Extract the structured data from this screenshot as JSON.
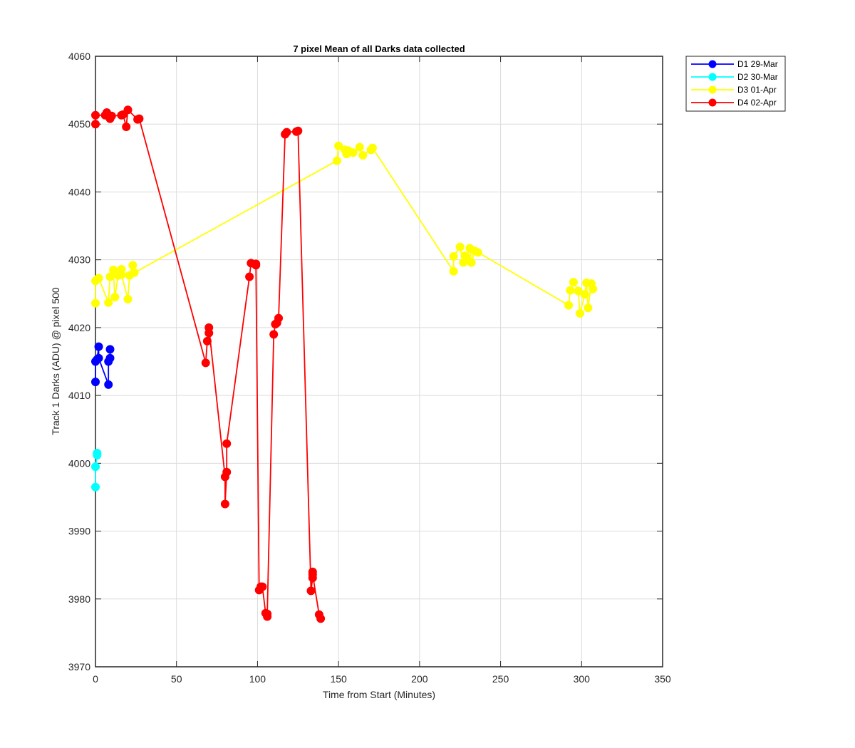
{
  "chart_data": {
    "type": "line",
    "title": "7 pixel Mean of all Darks data collected",
    "xlabel": "Time from Start (Minutes)",
    "ylabel": "Track 1 Darks (ADU) @ pixel 500",
    "xlim": [
      0,
      350
    ],
    "ylim": [
      3970,
      4060
    ],
    "xticks": [
      "0",
      "50",
      "100",
      "150",
      "200",
      "250",
      "300",
      "350"
    ],
    "yticks": [
      "3970",
      "3980",
      "3990",
      "4000",
      "4010",
      "4020",
      "4030",
      "4040",
      "4050",
      "4060"
    ],
    "grid": true,
    "legend_position": "top-right-outside",
    "series": [
      {
        "name": "D1 29-Mar",
        "color": "#0000ff",
        "x": [
          0,
          0,
          1,
          2,
          2,
          8,
          8,
          9,
          9
        ],
        "y": [
          4012,
          4015,
          4015.3,
          4017.2,
          4015.5,
          4011.6,
          4015,
          4015.5,
          4016.8
        ]
      },
      {
        "name": "D2 30-Mar",
        "color": "#00ffff",
        "x": [
          0,
          0,
          1,
          1
        ],
        "y": [
          3996.5,
          3999.5,
          4001.2,
          4001.5
        ]
      },
      {
        "name": "D3 01-Apr",
        "color": "#ffff00",
        "x": [
          0,
          0,
          2,
          8,
          9,
          11,
          12,
          14,
          16,
          16,
          20,
          21,
          23,
          24,
          149,
          150,
          155,
          154,
          156,
          159,
          163,
          165,
          170,
          171,
          221,
          221,
          225,
          227,
          228,
          229,
          231,
          232,
          234,
          236,
          292,
          293,
          295,
          298,
          299,
          302,
          303,
          304,
          306,
          307
        ],
        "y": [
          4023.6,
          4026.9,
          4027.3,
          4023.7,
          4027.5,
          4028.5,
          4024.5,
          4027.7,
          4028.6,
          4027.8,
          4024.2,
          4027.7,
          4029.2,
          4028.1,
          4044.6,
          4046.8,
          4045.6,
          4046.2,
          4046.1,
          4045.8,
          4046.6,
          4045.4,
          4046.2,
          4046.5,
          4028.3,
          4030.5,
          4031.9,
          4029.6,
          4030.6,
          4030.3,
          4031.7,
          4029.6,
          4031.3,
          4031.1,
          4023.3,
          4025.5,
          4026.7,
          4025.4,
          4022.1,
          4024.9,
          4026.6,
          4022.9,
          4026.5,
          4025.7
        ]
      },
      {
        "name": "D4 02-Apr",
        "color": "#ff0000",
        "x": [
          0,
          0,
          6,
          7,
          9,
          10,
          16,
          17,
          19,
          20,
          26,
          27,
          68,
          69,
          70,
          70,
          80,
          80,
          81,
          81,
          95,
          96,
          99,
          99,
          101,
          102,
          103,
          105,
          106,
          106,
          110,
          111,
          112,
          113,
          117,
          118,
          124,
          125,
          133,
          134,
          134,
          134,
          138,
          139
        ],
        "y": [
          4050,
          4051.3,
          4051.3,
          4051.7,
          4050.8,
          4051.2,
          4051.3,
          4051.4,
          4049.6,
          4052.1,
          4050.7,
          4050.8,
          4014.8,
          4018,
          4019.2,
          4020,
          3998,
          3994,
          3998.7,
          4002.9,
          4027.5,
          4029.5,
          4029.4,
          4029.2,
          3981.3,
          3981.8,
          3981.8,
          3977.9,
          3977.4,
          3977.8,
          4019,
          4020.5,
          4020.7,
          4021.4,
          4048.5,
          4048.8,
          4048.9,
          4049,
          3981.2,
          3983.1,
          3984,
          3983.6,
          3977.7,
          3977.1
        ]
      }
    ]
  }
}
